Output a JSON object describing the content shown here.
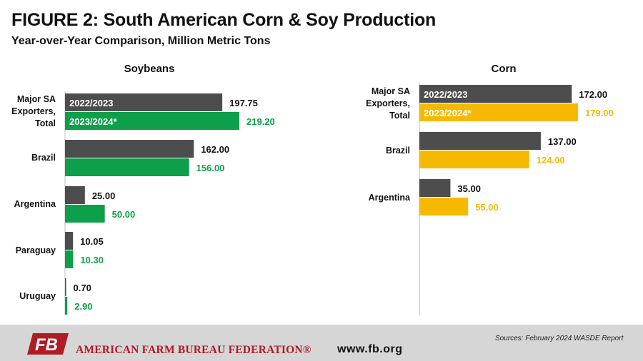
{
  "title": "FIGURE 2: South American Corn & Soy Production",
  "subtitle": "Year-over-Year Comparison, Million Metric Tons",
  "colors": {
    "prior_year": "#4d4d4d",
    "soybean_current": "#0e9f4a",
    "corn_current": "#f7b900"
  },
  "chart_data": [
    {
      "type": "bar",
      "orientation": "horizontal",
      "title": "Soybeans",
      "categories": [
        "Major SA Exporters, Total",
        "Brazil",
        "Argentina",
        "Paraguay",
        "Uruguay"
      ],
      "series": [
        {
          "name": "2022/2023",
          "values": [
            197.75,
            162.0,
            25.0,
            10.05,
            0.7
          ],
          "labels": [
            "197.75",
            "162.00",
            "25.00",
            "10.05",
            "0.70"
          ]
        },
        {
          "name": "2023/2024*",
          "values": [
            219.2,
            156.0,
            50.0,
            10.3,
            2.9
          ],
          "labels": [
            "219.20",
            "156.00",
            "50.00",
            "10.30",
            "2.90"
          ]
        }
      ],
      "xlim": [
        0,
        219.2
      ],
      "grid": false,
      "legend": "inside first bar pair"
    },
    {
      "type": "bar",
      "orientation": "horizontal",
      "title": "Corn",
      "categories": [
        "Major SA Exporters, Total",
        "Brazil",
        "Argentina"
      ],
      "series": [
        {
          "name": "2022/2023",
          "values": [
            172.0,
            137.0,
            35.0
          ],
          "labels": [
            "172.00",
            "137.00",
            "35.00"
          ]
        },
        {
          "name": "2023/2024*",
          "values": [
            179.0,
            124.0,
            55.0
          ],
          "labels": [
            "179.00",
            "124.00",
            "55.00"
          ]
        }
      ],
      "xlim": [
        0,
        179
      ],
      "grid": false,
      "legend": "inside first bar pair"
    }
  ],
  "footer": {
    "logo_text": "FB",
    "org_name": "AMERICAN FARM BUREAU FEDERATION®",
    "website": "www.fb.org",
    "source": "Sources: February 2024 WASDE Report"
  }
}
